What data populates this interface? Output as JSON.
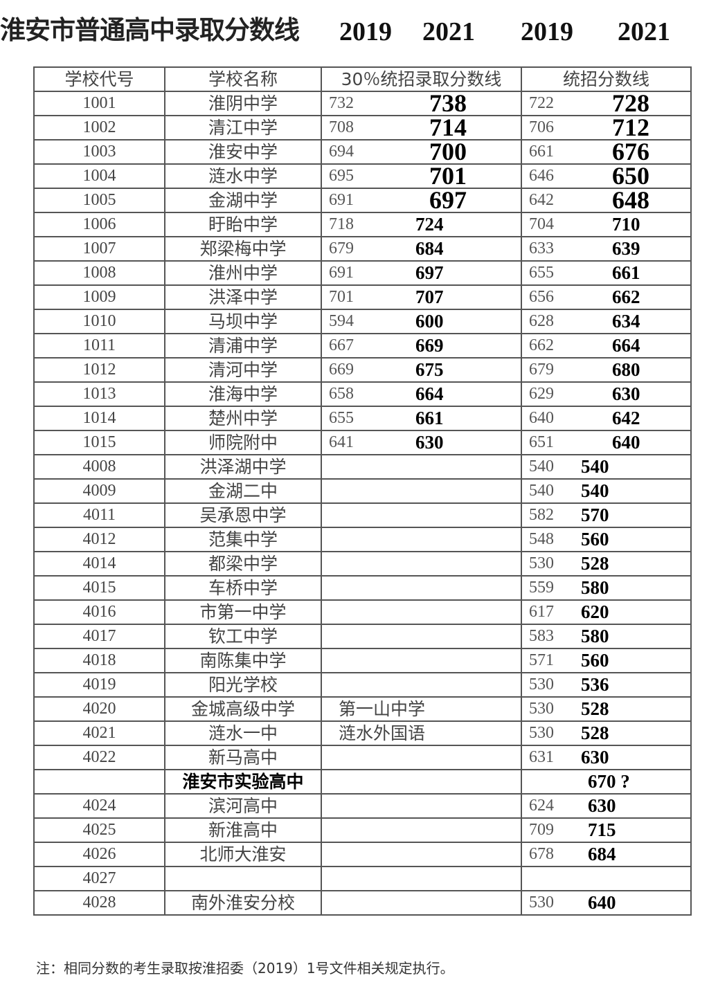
{
  "title": "淮安市普通高中录取分数线",
  "years": [
    "2019",
    "2021",
    "2019",
    "2021"
  ],
  "headers": [
    "学校代号",
    "学校名称",
    "30％统招录取分数线",
    "统招分数线"
  ],
  "rows": [
    {
      "code": "1001",
      "name": "淮阴中学",
      "p30_2019": "732",
      "p30_2021": "738",
      "tz_2019": "722",
      "tz_2021": "728"
    },
    {
      "code": "1002",
      "name": "清江中学",
      "p30_2019": "708",
      "p30_2021": "714",
      "tz_2019": "706",
      "tz_2021": "712"
    },
    {
      "code": "1003",
      "name": "淮安中学",
      "p30_2019": "694",
      "p30_2021": "700",
      "tz_2019": "661",
      "tz_2021": "676"
    },
    {
      "code": "1004",
      "name": "涟水中学",
      "p30_2019": "695",
      "p30_2021": "701",
      "tz_2019": "646",
      "tz_2021": "650"
    },
    {
      "code": "1005",
      "name": "金湖中学",
      "p30_2019": "691",
      "p30_2021": "697",
      "tz_2019": "642",
      "tz_2021": "648"
    },
    {
      "code": "1006",
      "name": "盱眙中学",
      "p30_2019": "718",
      "p30_2021": "724",
      "tz_2019": "704",
      "tz_2021": "710"
    },
    {
      "code": "1007",
      "name": "郑梁梅中学",
      "p30_2019": "679",
      "p30_2021": "684",
      "tz_2019": "633",
      "tz_2021": "639"
    },
    {
      "code": "1008",
      "name": "淮州中学",
      "p30_2019": "691",
      "p30_2021": "697",
      "tz_2019": "655",
      "tz_2021": "661"
    },
    {
      "code": "1009",
      "name": "洪泽中学",
      "p30_2019": "701",
      "p30_2021": "707",
      "tz_2019": "656",
      "tz_2021": "662"
    },
    {
      "code": "1010",
      "name": "马坝中学",
      "p30_2019": "594",
      "p30_2021": "600",
      "tz_2019": "628",
      "tz_2021": "634"
    },
    {
      "code": "1011",
      "name": "清浦中学",
      "p30_2019": "667",
      "p30_2021": "669",
      "tz_2019": "662",
      "tz_2021": "664"
    },
    {
      "code": "1012",
      "name": "清河中学",
      "p30_2019": "669",
      "p30_2021": "675",
      "tz_2019": "679",
      "tz_2021": "680"
    },
    {
      "code": "1013",
      "name": "淮海中学",
      "p30_2019": "658",
      "p30_2021": "664",
      "tz_2019": "629",
      "tz_2021": "630"
    },
    {
      "code": "1014",
      "name": "楚州中学",
      "p30_2019": "655",
      "p30_2021": "661",
      "tz_2019": "640",
      "tz_2021": "642"
    },
    {
      "code": "1015",
      "name": "师院附中",
      "p30_2019": "641",
      "p30_2021": "630",
      "tz_2019": "651",
      "tz_2021": "640"
    },
    {
      "code": "4008",
      "name": "洪泽湖中学",
      "tz_2019": "540",
      "tz_2021": "540"
    },
    {
      "code": "4009",
      "name": "金湖二中",
      "tz_2019": "540",
      "tz_2021": "540"
    },
    {
      "code": "4011",
      "name": "吴承恩中学",
      "tz_2019": "582",
      "tz_2021": "570"
    },
    {
      "code": "4012",
      "name": "范集中学",
      "tz_2019": "548",
      "tz_2021": "560"
    },
    {
      "code": "4014",
      "name": "都梁中学",
      "tz_2019": "530",
      "tz_2021": "528"
    },
    {
      "code": "4015",
      "name": "车桥中学",
      "tz_2019": "559",
      "tz_2021": "580"
    },
    {
      "code": "4016",
      "name": "市第一中学",
      "tz_2019": "617",
      "tz_2021": "620"
    },
    {
      "code": "4017",
      "name": "钦工中学",
      "tz_2019": "583",
      "tz_2021": "580"
    },
    {
      "code": "4018",
      "name": "南陈集中学",
      "tz_2019": "571",
      "tz_2021": "560"
    },
    {
      "code": "4019",
      "name": "阳光学校",
      "tz_2019": "530",
      "tz_2021": "536"
    },
    {
      "code": "4020",
      "name": "金城高级中学",
      "note": "第一山中学",
      "tz_2019": "530",
      "tz_2021": "528"
    },
    {
      "code": "4021",
      "name": "涟水一中",
      "note": "涟水外国语",
      "tz_2019": "530",
      "tz_2021": "528"
    },
    {
      "code": "4022",
      "name": "新马高中",
      "tz_2019": "631",
      "tz_2021": "630"
    },
    {
      "code": "",
      "name": "淮安市实验高中",
      "tz_2021": "670 ?",
      "bold": true
    },
    {
      "code": "4024",
      "name": "滨河高中",
      "tz_2019": "624",
      "tz_2021": "630"
    },
    {
      "code": "4025",
      "name": "新淮高中",
      "tz_2019": "709",
      "tz_2021": "715"
    },
    {
      "code": "4026",
      "name": "北师大淮安",
      "tz_2019": "678",
      "tz_2021": "684"
    },
    {
      "code": "4027",
      "name": ""
    },
    {
      "code": "4028",
      "name": "南外淮安分校",
      "tz_2019": "530",
      "tz_2021": "640"
    }
  ],
  "footer": "注：相同分数的考生录取按淮招委（2019）1号文件相关规定执行。"
}
